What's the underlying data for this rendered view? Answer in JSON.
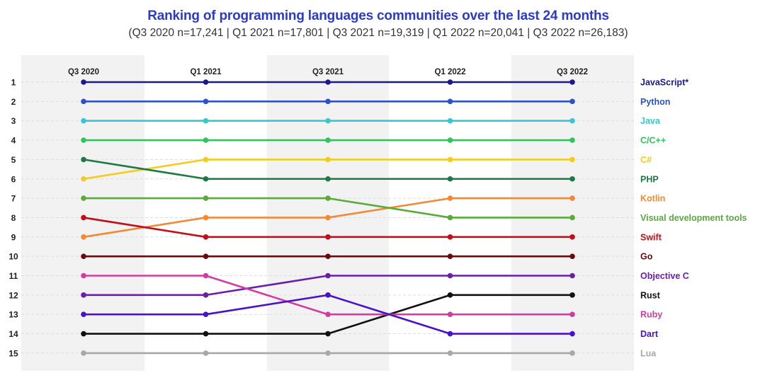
{
  "colors": {
    "title": "#2a3bc8",
    "band": "#f2f2f2",
    "grid": "#dddddd"
  },
  "chart_data": {
    "type": "line",
    "title": "Ranking of programming languages communities over the last 24 months",
    "subtitle": "(Q3 2020 n=17,241 | Q1 2021 n=17,801 | Q3 2021 n=19,319 | Q1 2022 n=20,041 | Q3 2022 n=26,183)",
    "categories": [
      "Q3 2020",
      "Q1 2021",
      "Q3 2021",
      "Q1 2022",
      "Q3 2022"
    ],
    "y_ticks": [
      "1",
      "2",
      "3",
      "4",
      "5",
      "6",
      "7",
      "8",
      "9",
      "10",
      "11",
      "12",
      "13",
      "14",
      "15"
    ],
    "ylim": [
      1,
      15
    ],
    "y_inverted": true,
    "series": [
      {
        "name": "JavaScript*",
        "color": "#1a1a8c",
        "values": [
          1,
          1,
          1,
          1,
          1
        ]
      },
      {
        "name": "Python",
        "color": "#2d52c8",
        "values": [
          2,
          2,
          2,
          2,
          2
        ]
      },
      {
        "name": "Java",
        "color": "#34c8d2",
        "values": [
          3,
          3,
          3,
          3,
          3
        ]
      },
      {
        "name": "C/C++",
        "color": "#2ec45e",
        "values": [
          4,
          4,
          4,
          4,
          4
        ]
      },
      {
        "name": "C#",
        "color": "#f2cc1f",
        "values": [
          6,
          5,
          5,
          5,
          5
        ]
      },
      {
        "name": "PHP",
        "color": "#1e7a45",
        "values": [
          5,
          6,
          6,
          6,
          6
        ]
      },
      {
        "name": "Kotlin",
        "color": "#f08a35",
        "values": [
          9,
          8,
          8,
          7,
          7
        ]
      },
      {
        "name": "Visual development tools",
        "color": "#5aaa3c",
        "values": [
          7,
          7,
          7,
          8,
          8
        ]
      },
      {
        "name": "Swift",
        "color": "#c0101a",
        "values": [
          8,
          9,
          9,
          9,
          9
        ]
      },
      {
        "name": "Go",
        "color": "#6a0b0b",
        "values": [
          10,
          10,
          10,
          10,
          10
        ]
      },
      {
        "name": "Objective C",
        "color": "#6a1fa8",
        "values": [
          12,
          12,
          11,
          11,
          11
        ]
      },
      {
        "name": "Rust",
        "color": "#111111",
        "values": [
          14,
          14,
          14,
          12,
          12
        ]
      },
      {
        "name": "Ruby",
        "color": "#d23ca0",
        "values": [
          11,
          11,
          13,
          13,
          13
        ]
      },
      {
        "name": "Dart",
        "color": "#4a12c8",
        "values": [
          13,
          13,
          12,
          14,
          14
        ]
      },
      {
        "name": "Lua",
        "color": "#a8a8a8",
        "values": [
          15,
          15,
          15,
          15,
          15
        ]
      }
    ]
  }
}
